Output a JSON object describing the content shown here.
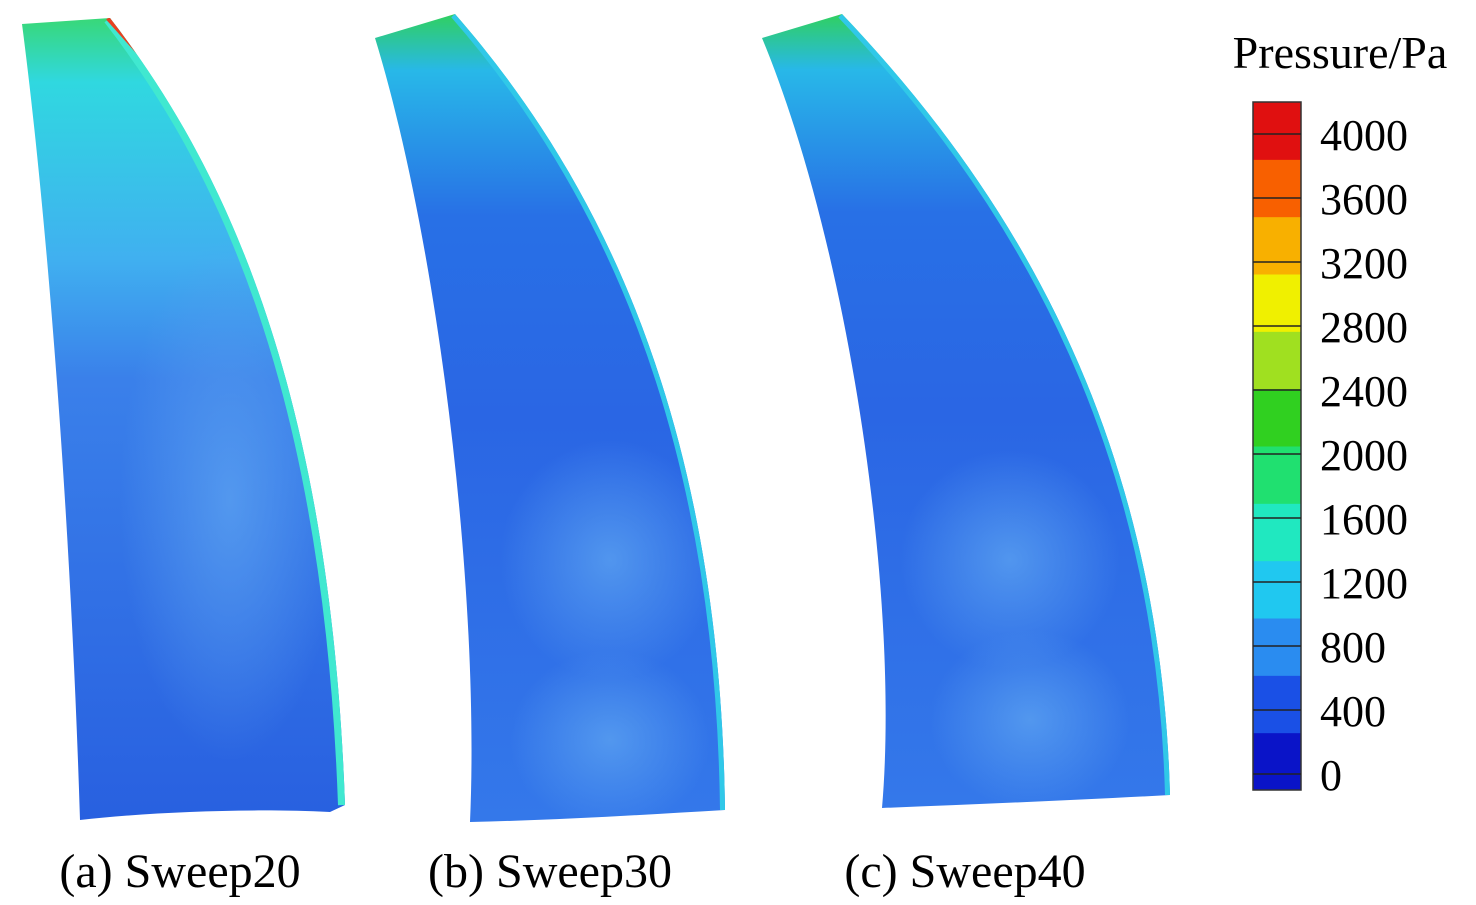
{
  "legend": {
    "title": "Pressure/Pa",
    "lim": [
      -100,
      4200
    ],
    "ticks": [
      0,
      400,
      800,
      1200,
      1600,
      2000,
      2400,
      2800,
      3200,
      3600,
      4000
    ],
    "colormap": [
      "#0a14c8",
      "#1a50e6",
      "#2a8cf0",
      "#20c8f0",
      "#20e8c0",
      "#20e070",
      "#30d020",
      "#a0e020",
      "#f0f000",
      "#f8b000",
      "#f86000",
      "#e01010"
    ]
  },
  "panels": [
    {
      "caption": "(a) Sweep20"
    },
    {
      "caption": "(b) Sweep30"
    },
    {
      "caption": "(c) Sweep40"
    }
  ]
}
